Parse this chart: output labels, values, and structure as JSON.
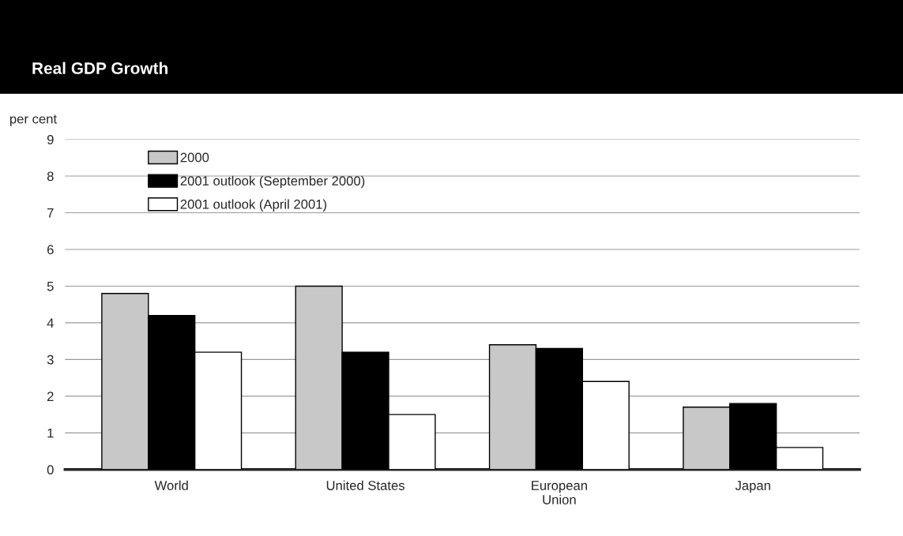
{
  "chart_data": {
    "type": "bar",
    "title": "Real GDP Growth",
    "ylabel": "per cent",
    "categories": [
      "World",
      "United States",
      "European\nUnion",
      "Japan"
    ],
    "series": [
      {
        "name": "2000",
        "color": "#c8c8c8",
        "values": [
          4.8,
          5.0,
          3.4,
          1.7
        ]
      },
      {
        "name": "2001 outlook (September 2000)",
        "color": "#000000",
        "values": [
          4.2,
          3.2,
          3.3,
          1.8
        ]
      },
      {
        "name": "2001 outlook (April 2001)",
        "color": "#ffffff",
        "values": [
          3.2,
          1.5,
          2.4,
          0.6
        ]
      }
    ],
    "ylim": [
      0,
      9
    ],
    "yticks": [
      0,
      1,
      2,
      3,
      4,
      5,
      6,
      7,
      8,
      9
    ],
    "grid": "y",
    "legend": "top left"
  }
}
